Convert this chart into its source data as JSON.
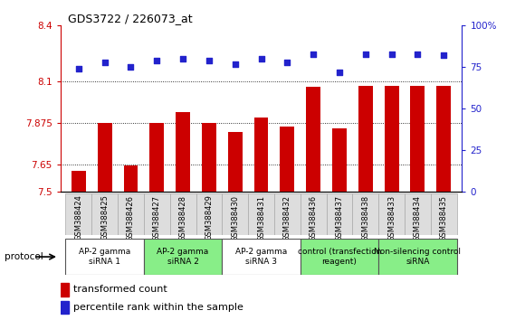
{
  "title": "GDS3722 / 226073_at",
  "samples": [
    "GSM388424",
    "GSM388425",
    "GSM388426",
    "GSM388427",
    "GSM388428",
    "GSM388429",
    "GSM388430",
    "GSM388431",
    "GSM388432",
    "GSM388436",
    "GSM388437",
    "GSM388438",
    "GSM388433",
    "GSM388434",
    "GSM388435"
  ],
  "bar_values": [
    7.615,
    7.875,
    7.645,
    7.875,
    7.93,
    7.875,
    7.825,
    7.905,
    7.855,
    8.07,
    7.845,
    8.075,
    8.075,
    8.075,
    8.075
  ],
  "dot_values": [
    74,
    78,
    75,
    79,
    80,
    79,
    77,
    80,
    78,
    83,
    72,
    83,
    83,
    83,
    82
  ],
  "bar_color": "#cc0000",
  "dot_color": "#2222cc",
  "ylim_left": [
    7.5,
    8.4
  ],
  "ylim_right": [
    0,
    100
  ],
  "yticks_left": [
    7.5,
    7.65,
    7.875,
    8.1,
    8.4
  ],
  "ytick_labels_left": [
    "7.5",
    "7.65",
    "7.875",
    "8.1",
    "8.4"
  ],
  "yticks_right": [
    0,
    25,
    50,
    75,
    100
  ],
  "ytick_labels_right": [
    "0",
    "25",
    "50",
    "75",
    "100%"
  ],
  "hlines": [
    7.65,
    7.875,
    8.1
  ],
  "groups": [
    {
      "label": "AP-2 gamma\nsiRNA 1",
      "start": 0,
      "end": 3,
      "color": "#ffffff"
    },
    {
      "label": "AP-2 gamma\nsiRNA 2",
      "start": 3,
      "end": 6,
      "color": "#88ee88"
    },
    {
      "label": "AP-2 gamma\nsiRNA 3",
      "start": 6,
      "end": 9,
      "color": "#ffffff"
    },
    {
      "label": "control (transfection\nreagent)",
      "start": 9,
      "end": 12,
      "color": "#88ee88"
    },
    {
      "label": "Non-silencing control\nsiRNA",
      "start": 12,
      "end": 15,
      "color": "#88ee88"
    }
  ],
  "protocol_label": "protocol",
  "legend1_label": "transformed count",
  "legend2_label": "percentile rank within the sample",
  "bar_width": 0.55,
  "axis_color_left": "#cc0000",
  "axis_color_right": "#2222cc",
  "fig_width": 5.8,
  "fig_height": 3.54,
  "dpi": 100
}
